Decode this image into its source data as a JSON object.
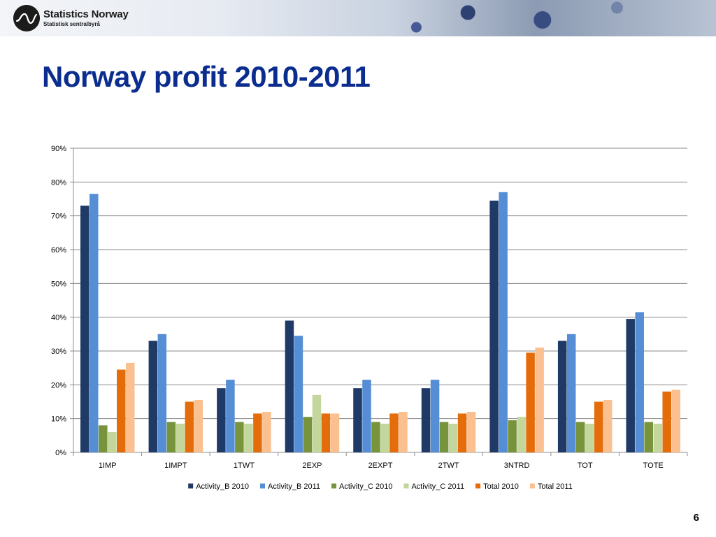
{
  "header": {
    "brand_name": "Statistics Norway",
    "brand_sub": "Statistisk sentralbyrå"
  },
  "slide": {
    "title": "Norway profit 2010-2011",
    "page_number": "6"
  },
  "chart_data": {
    "type": "bar",
    "title": "",
    "xlabel": "",
    "ylabel": "",
    "ylim": [
      0,
      90
    ],
    "ytick_labels": [
      "0%",
      "10%",
      "20%",
      "30%",
      "40%",
      "50%",
      "60%",
      "70%",
      "80%",
      "90%"
    ],
    "categories": [
      "1IMP",
      "1IMPT",
      "1TWT",
      "2EXP",
      "2EXPT",
      "2TWT",
      "3NTRD",
      "TOT",
      "TOTE"
    ],
    "grid": true,
    "legend_position": "bottom",
    "series": [
      {
        "name": "Activity_B 2010",
        "color": "#1f3a66",
        "values": [
          73,
          33,
          19,
          39,
          19,
          19,
          74.5,
          33,
          39.5
        ]
      },
      {
        "name": "Activity_B 2011",
        "color": "#558ed5",
        "values": [
          76.5,
          35,
          21.5,
          34.5,
          21.5,
          21.5,
          77,
          35,
          41.5
        ]
      },
      {
        "name": "Activity_C 2010",
        "color": "#77933c",
        "values": [
          8,
          9,
          9,
          10.5,
          9,
          9,
          9.5,
          9,
          9
        ]
      },
      {
        "name": "Activity_C 2011",
        "color": "#c3d69b",
        "values": [
          6,
          8.5,
          8.5,
          17,
          8.5,
          8.5,
          10.5,
          8.5,
          8.5
        ]
      },
      {
        "name": "Total 2010",
        "color": "#e46c0a",
        "values": [
          24.5,
          15,
          11.5,
          11.5,
          11.5,
          11.5,
          29.5,
          15,
          18
        ]
      },
      {
        "name": "Total 2011",
        "color": "#fac090",
        "values": [
          26.5,
          15.5,
          12,
          11.5,
          12,
          12,
          31,
          15.5,
          18.5
        ]
      }
    ]
  }
}
